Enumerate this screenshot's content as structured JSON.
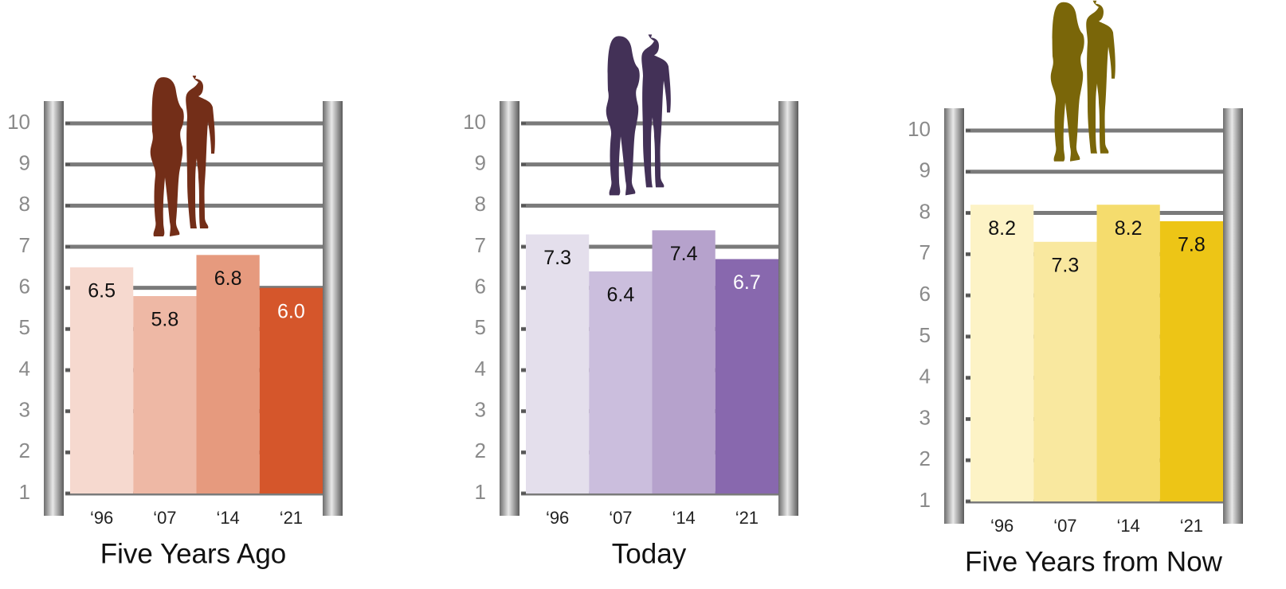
{
  "chart_data": [
    {
      "type": "bar",
      "title": "Five Years Ago",
      "categories": [
        "‘96",
        "‘07",
        "‘14",
        "‘21"
      ],
      "values": [
        6.5,
        5.8,
        6.8,
        6.0
      ],
      "value_labels": [
        "6.5",
        "5.8",
        "6.8",
        "6.0"
      ],
      "colors": [
        "#f6d9cf",
        "#eeb8a5",
        "#e69a7e",
        "#d5562b"
      ],
      "figure_color": "#732e18",
      "ylim": [
        1,
        10
      ],
      "yticks": [
        1,
        2,
        3,
        4,
        5,
        6,
        7,
        8,
        9,
        10
      ]
    },
    {
      "type": "bar",
      "title": "Today",
      "categories": [
        "‘96",
        "‘07",
        "‘14",
        "‘21"
      ],
      "values": [
        7.3,
        6.4,
        7.4,
        6.7
      ],
      "value_labels": [
        "7.3",
        "6.4",
        "7.4",
        "6.7"
      ],
      "colors": [
        "#e4dfec",
        "#cbbedd",
        "#b6a2cc",
        "#8868ae"
      ],
      "figure_color": "#433157",
      "ylim": [
        1,
        10
      ],
      "yticks": [
        1,
        2,
        3,
        4,
        5,
        6,
        7,
        8,
        9,
        10
      ]
    },
    {
      "type": "bar",
      "title": "Five Years from Now",
      "categories": [
        "‘96",
        "‘07",
        "‘14",
        "‘21"
      ],
      "values": [
        8.2,
        7.3,
        8.2,
        7.8
      ],
      "value_labels": [
        "8.2",
        "7.3",
        "8.2",
        "7.8"
      ],
      "colors": [
        "#fdf3c6",
        "#f9e89f",
        "#f5dc6d",
        "#edc516"
      ],
      "figure_color": "#7a6609",
      "ylim": [
        1,
        10
      ],
      "yticks": [
        1,
        2,
        3,
        4,
        5,
        6,
        7,
        8,
        9,
        10
      ]
    }
  ]
}
